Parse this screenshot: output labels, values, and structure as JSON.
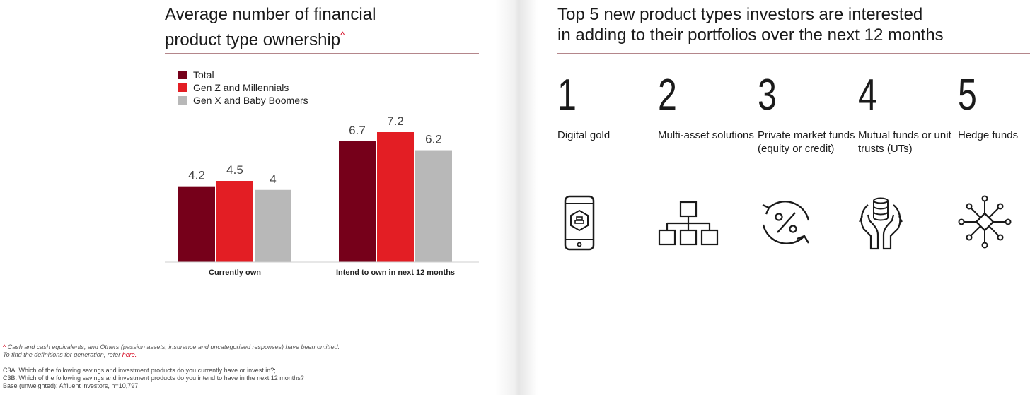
{
  "left": {
    "title_line1": "Average number of financial",
    "title_line2": "product type ownership",
    "title_mark": "^"
  },
  "colors": {
    "total": "#76001a",
    "genz": "#e31e24",
    "genx": "#b8b8b8",
    "accent": "#d4001a"
  },
  "chart_data": {
    "type": "bar",
    "title": "Average number of financial product type ownership",
    "categories": [
      "Currently own",
      "Intend to own in next 12 months"
    ],
    "series": [
      {
        "name": "Total",
        "values": [
          4.2,
          6.7
        ]
      },
      {
        "name": "Gen Z and Millennials",
        "values": [
          4.5,
          7.2
        ]
      },
      {
        "name": "Gen X and Baby Boomers",
        "values": [
          4,
          6.2
        ]
      }
    ],
    "value_labels": [
      [
        "4.2",
        "6.7"
      ],
      [
        "4.5",
        "7.2"
      ],
      [
        "4",
        "6.2"
      ]
    ],
    "ylim": [
      0,
      8
    ],
    "legend_position": "top-left",
    "grid": false
  },
  "footnotes": {
    "caret_mark": "^",
    "caret_text": "Cash and cash equivalents, and Others (passion assets, insurance and uncategorised responses) have been omitted.",
    "defs_text": "To find the definitions for generation, refer",
    "defs_link": "here.",
    "q1": "C3A. Which of the following savings and investment products do you currently have or invest in?;",
    "q2": "C3B. Which of the following savings and investment products do you intend to have in the next 12 months?",
    "base": "Base (unweighted): Affluent investors, n=10,797."
  },
  "right": {
    "title_line1": "Top 5 new product types investors are interested",
    "title_line2": "in adding to their portfolios over the next 12 months",
    "products": [
      {
        "rank": "1",
        "name": "Digital gold",
        "icon": "digital-gold-phone-icon"
      },
      {
        "rank": "2",
        "name": "Multi-asset solutions",
        "icon": "org-chart-icon"
      },
      {
        "rank": "3",
        "name": "Private market funds (equity or credit)",
        "icon": "percent-cycle-icon"
      },
      {
        "rank": "4",
        "name": "Mutual funds or unit trusts (UTs)",
        "icon": "hands-coins-icon"
      },
      {
        "rank": "5",
        "name": "Hedge funds",
        "icon": "network-diamond-icon"
      }
    ]
  }
}
